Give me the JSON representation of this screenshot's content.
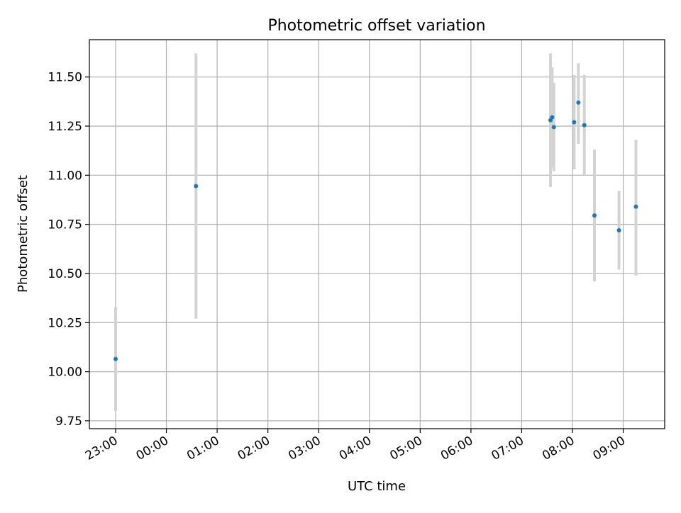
{
  "chart_data": {
    "type": "scatter",
    "title": "Photometric offset variation",
    "xlabel": "UTC time",
    "ylabel": "Photometric offset",
    "x_axis_kind": "time",
    "xlim": [
      "22:29",
      "09:49"
    ],
    "ylim": [
      9.71,
      11.69
    ],
    "grid": true,
    "x_ticks": [
      "23:00",
      "00:00",
      "01:00",
      "02:00",
      "03:00",
      "04:00",
      "05:00",
      "06:00",
      "07:00",
      "08:00",
      "09:00"
    ],
    "y_ticks": [
      "9.75",
      "10.00",
      "10.25",
      "10.50",
      "10.75",
      "11.00",
      "11.25",
      "11.50"
    ],
    "point_color": "#1f77b4",
    "errorbar_color": "#d3d3d3",
    "points": [
      {
        "time": "23:00",
        "y": 10.065,
        "yerr_low": 9.8,
        "yerr_high": 10.33
      },
      {
        "time": "00:35",
        "y": 10.945,
        "yerr_low": 10.27,
        "yerr_high": 11.62
      },
      {
        "time": "07:34",
        "y": 11.28,
        "yerr_low": 10.94,
        "yerr_high": 11.62
      },
      {
        "time": "07:36",
        "y": 11.295,
        "yerr_low": 11.04,
        "yerr_high": 11.55
      },
      {
        "time": "07:38",
        "y": 11.245,
        "yerr_low": 11.02,
        "yerr_high": 11.47
      },
      {
        "time": "08:02",
        "y": 11.27,
        "yerr_low": 11.03,
        "yerr_high": 11.51
      },
      {
        "time": "08:07",
        "y": 11.37,
        "yerr_low": 11.16,
        "yerr_high": 11.57
      },
      {
        "time": "08:14",
        "y": 11.255,
        "yerr_low": 11.0,
        "yerr_high": 11.51
      },
      {
        "time": "08:26",
        "y": 10.795,
        "yerr_low": 10.46,
        "yerr_high": 11.13
      },
      {
        "time": "08:55",
        "y": 10.72,
        "yerr_low": 10.52,
        "yerr_high": 10.92
      },
      {
        "time": "09:15",
        "y": 10.84,
        "yerr_low": 10.49,
        "yerr_high": 11.18
      }
    ]
  }
}
